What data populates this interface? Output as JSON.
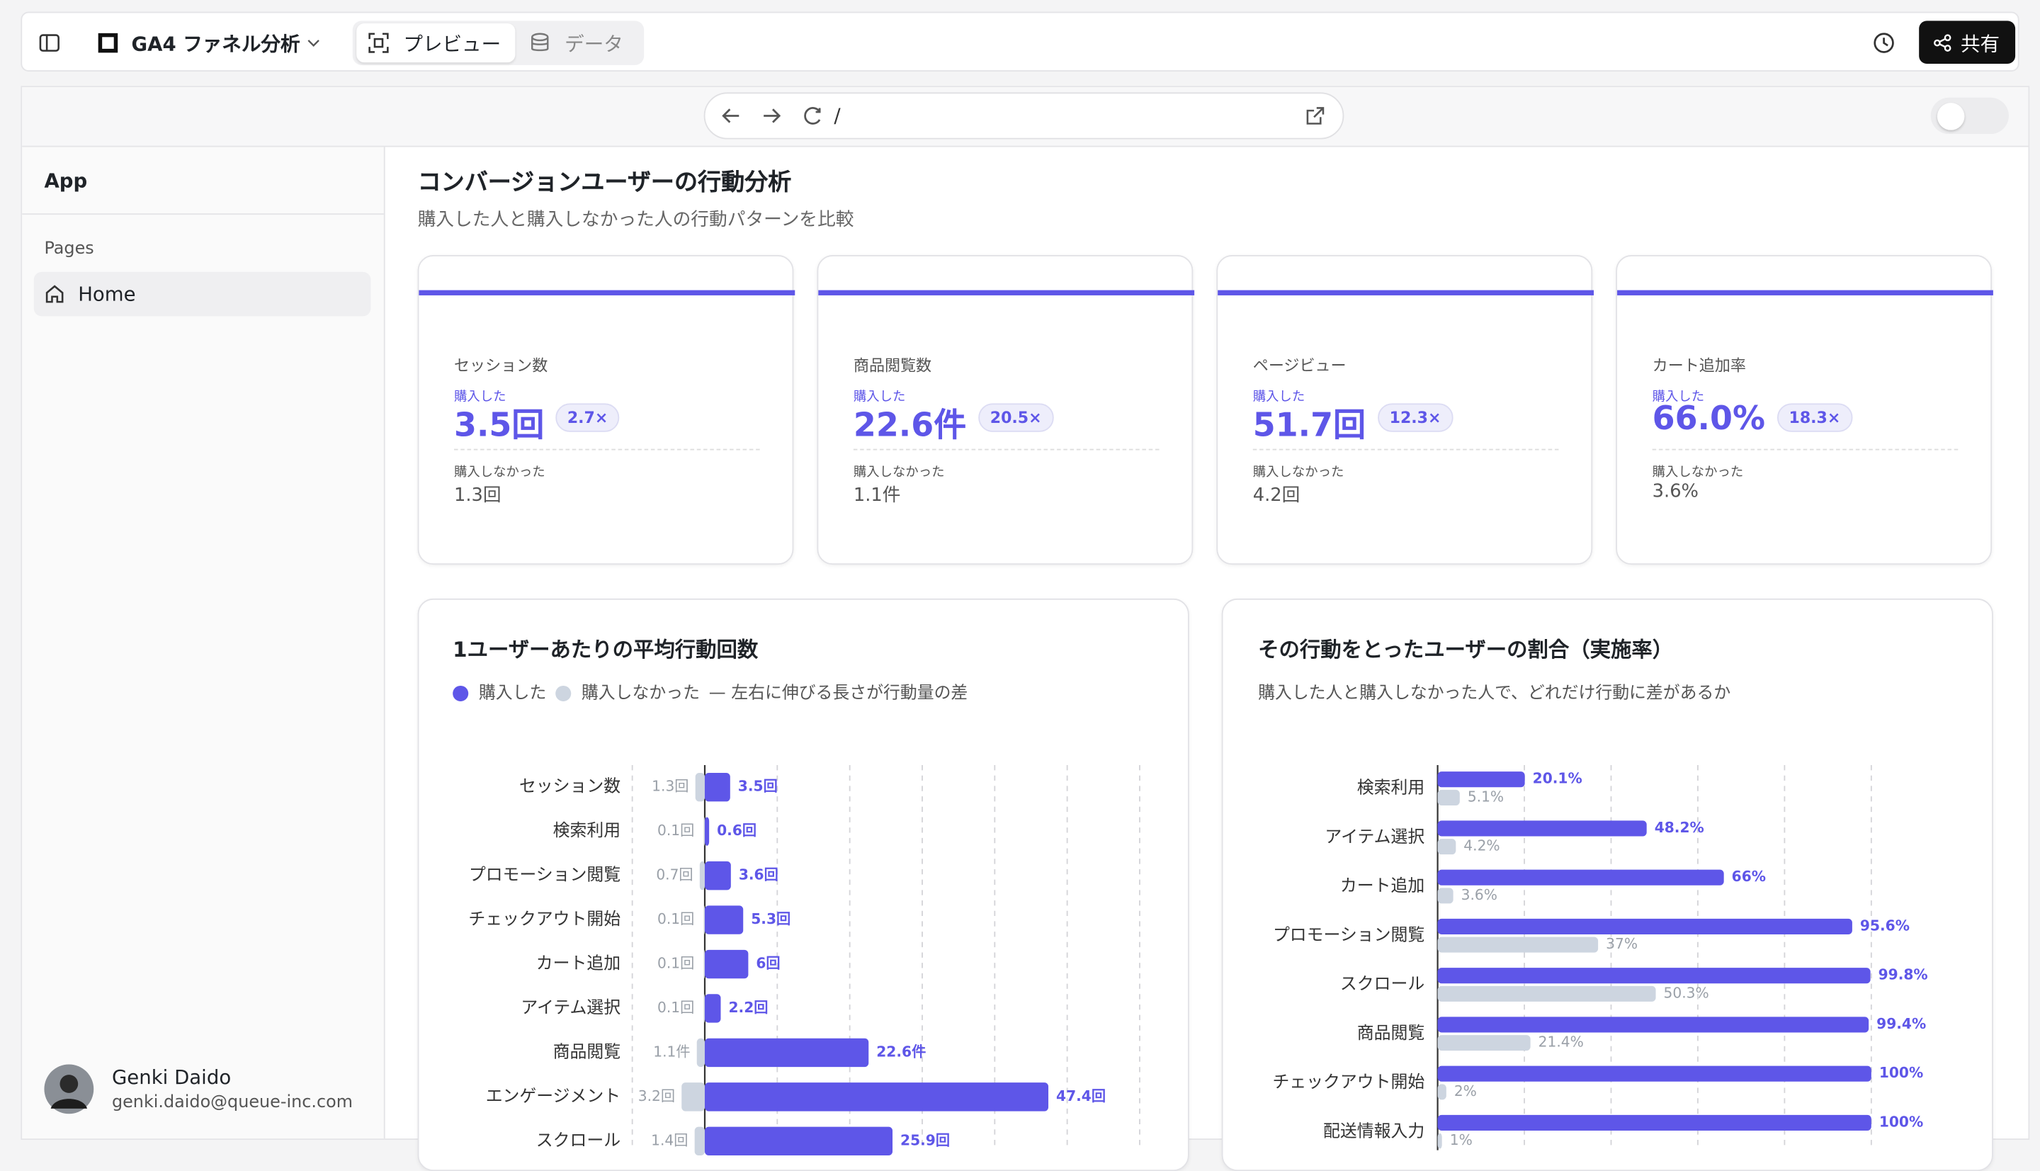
{
  "toolbar": {
    "project": "GA4 ファネル分析",
    "tabs": [
      "プレビュー",
      "データ"
    ],
    "share": "共有",
    "url": "/"
  },
  "sidebar": {
    "app": "App",
    "section": "Pages",
    "items": [
      "Home"
    ],
    "user": {
      "name": "Genki Daido",
      "email": "genki.daido@queue-inc.com"
    }
  },
  "header": {
    "title": "コンバージョンユーザーの行動分析",
    "subtitle": "購入した人と購入しなかった人の行動パターンを比較"
  },
  "kpis": [
    {
      "label": "セッション数",
      "bought_label": "購入した",
      "bought": "3.5回",
      "ratio": "2.7×",
      "not_label": "購入しなかった",
      "not": "1.3回"
    },
    {
      "label": "商品閲覧数",
      "bought_label": "購入した",
      "bought": "22.6件",
      "ratio": "20.5×",
      "not_label": "購入しなかった",
      "not": "1.1件"
    },
    {
      "label": "ページビュー",
      "bought_label": "購入した",
      "bought": "51.7回",
      "ratio": "12.3×",
      "not_label": "購入しなかった",
      "not": "4.2回"
    },
    {
      "label": "カート追加率",
      "bought_label": "購入した",
      "bought": "66.0%",
      "ratio": "18.3×",
      "not_label": "購入しなかった",
      "not": "3.6%"
    }
  ],
  "chart_data": [
    {
      "type": "diverging",
      "title": "1ユーザーあたりの平均行動回数",
      "legend_note": "— 左右に伸びる長さが行動量の差",
      "categories": [
        "セッション数",
        "検索利用",
        "プロモーション閲覧",
        "チェックアウト開始",
        "カート追加",
        "アイテム選択",
        "商品閲覧",
        "エンゲージメント",
        "スクロール"
      ],
      "series": [
        {
          "name": "購入した",
          "color": "#5e56e8",
          "values": [
            3.5,
            0.6,
            3.6,
            5.3,
            6,
            2.2,
            22.6,
            47.4,
            25.9
          ],
          "value_labels": [
            "3.5回",
            "0.6回",
            "3.6回",
            "5.3回",
            "6回",
            "2.2回",
            "22.6件",
            "47.4回",
            "25.9回"
          ]
        },
        {
          "name": "購入しなかった",
          "color": "#cdd5e0",
          "values": [
            1.3,
            0.1,
            0.7,
            0.1,
            0.1,
            0.1,
            1.1,
            3.2,
            1.4
          ],
          "value_labels": [
            "1.3回",
            "0.1回",
            "0.7回",
            "0.1回",
            "0.1回",
            "0.1回",
            "1.1件",
            "3.2回",
            "1.4回"
          ]
        }
      ],
      "xlim": [
        -10,
        60
      ],
      "xticks": [
        -10,
        0,
        10,
        20,
        30,
        40,
        50,
        60
      ],
      "grid": true
    },
    {
      "type": "bar",
      "title": "その行動をとったユーザーの割合（実施率）",
      "subtitle": "購入した人と購入しなかった人で、どれだけ行動に差があるか",
      "categories": [
        "検索利用",
        "アイテム選択",
        "カート追加",
        "プロモーション閲覧",
        "スクロール",
        "商品閲覧",
        "チェックアウト開始",
        "配送情報入力"
      ],
      "series": [
        {
          "name": "購入した",
          "color": "#5e56e8",
          "values": [
            20.1,
            48.2,
            66,
            95.6,
            99.8,
            99.4,
            100,
            100
          ],
          "value_labels": [
            "20.1%",
            "48.2%",
            "66%",
            "95.6%",
            "99.8%",
            "99.4%",
            "100%",
            "100%"
          ]
        },
        {
          "name": "購入しなかった",
          "color": "#cdd5e0",
          "values": [
            5.1,
            4.2,
            3.6,
            37,
            50.3,
            21.4,
            2,
            1
          ],
          "value_labels": [
            "5.1%",
            "4.2%",
            "3.6%",
            "37%",
            "50.3%",
            "21.4%",
            "2%",
            "1%"
          ]
        }
      ],
      "xlim": [
        0,
        120
      ],
      "xticks": [
        0,
        20,
        40,
        60,
        80,
        100
      ],
      "grid": true
    }
  ]
}
